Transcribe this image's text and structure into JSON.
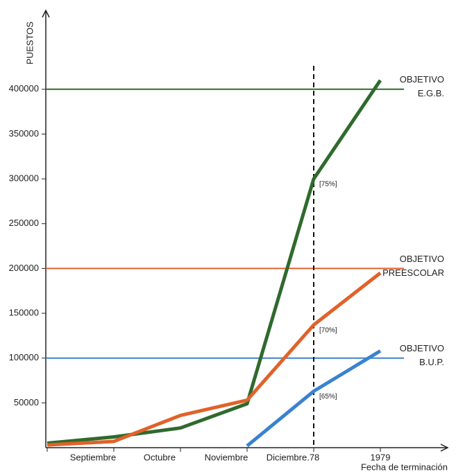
{
  "chart_data": {
    "type": "line",
    "y_label": "PUESTOS",
    "x_label": "Fecha de terminación",
    "categories": [
      null,
      "Septiembre",
      "Octubre",
      "Noviembre",
      "Diciembre.78",
      "1979"
    ],
    "series": [
      {
        "name": "E.G.B.",
        "color": "#2f6a2c",
        "values": [
          5000,
          12000,
          22000,
          49000,
          300000,
          410000
        ]
      },
      {
        "name": "Preescolar",
        "color": "#e0622a",
        "values": [
          3000,
          7000,
          36000,
          53000,
          137000,
          195000
        ]
      },
      {
        "name": "B.U.P.",
        "color": "#3a82d0",
        "values": [
          null,
          null,
          null,
          2000,
          63000,
          108000
        ]
      }
    ],
    "reference_lines": [
      {
        "value": 400000,
        "color": "#2f6a2c",
        "label": [
          "OBJETIVO",
          "E.G.B."
        ]
      },
      {
        "value": 200000,
        "color": "#e0622a",
        "label": [
          "OBJETIVO",
          "PREESCOLAR"
        ]
      },
      {
        "value": 100000,
        "color": "#3a82d0",
        "label": [
          "OBJETIVO",
          "B.U.P."
        ]
      }
    ],
    "annotations": [
      {
        "text": "[75%]",
        "series": 0,
        "category": 4
      },
      {
        "text": "[70%]",
        "series": 1,
        "category": 4
      },
      {
        "text": "[65%]",
        "series": 2,
        "category": 4
      }
    ],
    "vline_category": 4,
    "ylim": [
      0,
      488000
    ],
    "yticks": [
      50000,
      100000,
      150000,
      200000,
      250000,
      300000,
      350000,
      400000
    ]
  }
}
